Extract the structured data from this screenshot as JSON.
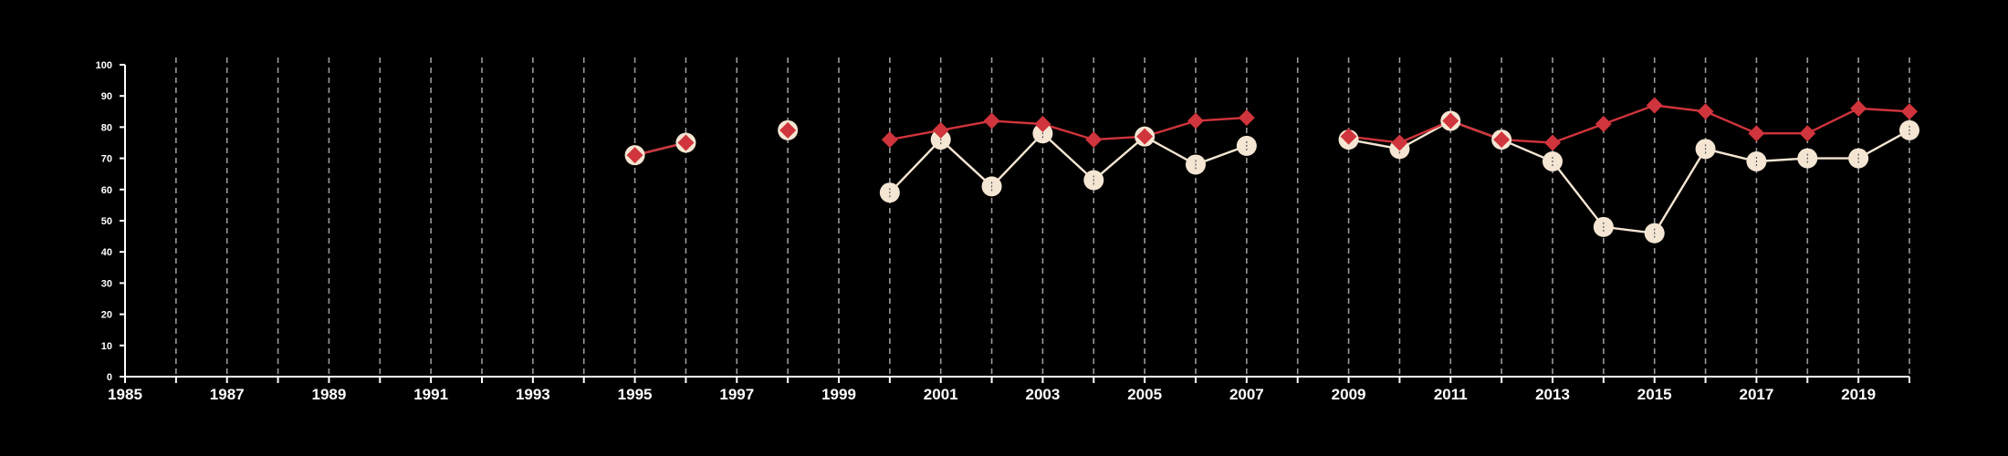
{
  "chart_data": {
    "type": "line",
    "title": "",
    "xlabel": "",
    "ylabel": "",
    "xlim": [
      1985,
      2020
    ],
    "ylim": [
      0,
      100
    ],
    "x_tick_labels": [
      "1985",
      "1987",
      "1989",
      "1991",
      "1993",
      "1995",
      "1997",
      "1999",
      "2001",
      "2003",
      "2005",
      "2007",
      "2009",
      "2011",
      "2013",
      "2015",
      "2017",
      "2019"
    ],
    "y_tick_labels": [
      "0",
      "10",
      "20",
      "30",
      "40",
      "50",
      "60",
      "70",
      "80",
      "90",
      "100"
    ],
    "grid": "vertical dashed lines at each year",
    "colors": {
      "background": "#000000",
      "axis": "#ffffff",
      "grid": "#9a9a9a",
      "series_white": "#f5e6d3",
      "series_red": "#d0343c"
    },
    "series": [
      {
        "marker": "circle",
        "color": "#f5e6d3",
        "points": [
          [
            1995,
            71
          ],
          [
            1996,
            75
          ],
          [
            1998,
            79
          ],
          [
            2000,
            59
          ],
          [
            2001,
            76
          ],
          [
            2002,
            61
          ],
          [
            2003,
            78
          ],
          [
            2004,
            63
          ],
          [
            2005,
            77
          ],
          [
            2006,
            68
          ],
          [
            2007,
            74
          ],
          [
            2009,
            76
          ],
          [
            2010,
            73
          ],
          [
            2011,
            82
          ],
          [
            2012,
            76
          ],
          [
            2013,
            69
          ],
          [
            2014,
            48
          ],
          [
            2015,
            46
          ],
          [
            2016,
            73
          ],
          [
            2017,
            69
          ],
          [
            2018,
            70
          ],
          [
            2019,
            70
          ],
          [
            2020,
            79
          ]
        ]
      },
      {
        "marker": "diamond",
        "color": "#d0343c",
        "points": [
          [
            1995,
            71
          ],
          [
            1996,
            75
          ],
          [
            1998,
            79
          ],
          [
            2000,
            76
          ],
          [
            2001,
            79
          ],
          [
            2002,
            82
          ],
          [
            2003,
            81
          ],
          [
            2004,
            76
          ],
          [
            2005,
            77
          ],
          [
            2006,
            82
          ],
          [
            2007,
            83
          ],
          [
            2009,
            77
          ],
          [
            2010,
            75
          ],
          [
            2011,
            82
          ],
          [
            2012,
            76
          ],
          [
            2013,
            75
          ],
          [
            2014,
            81
          ],
          [
            2015,
            87
          ],
          [
            2016,
            85
          ],
          [
            2017,
            78
          ],
          [
            2018,
            78
          ],
          [
            2019,
            86
          ],
          [
            2020,
            85
          ]
        ]
      }
    ]
  }
}
